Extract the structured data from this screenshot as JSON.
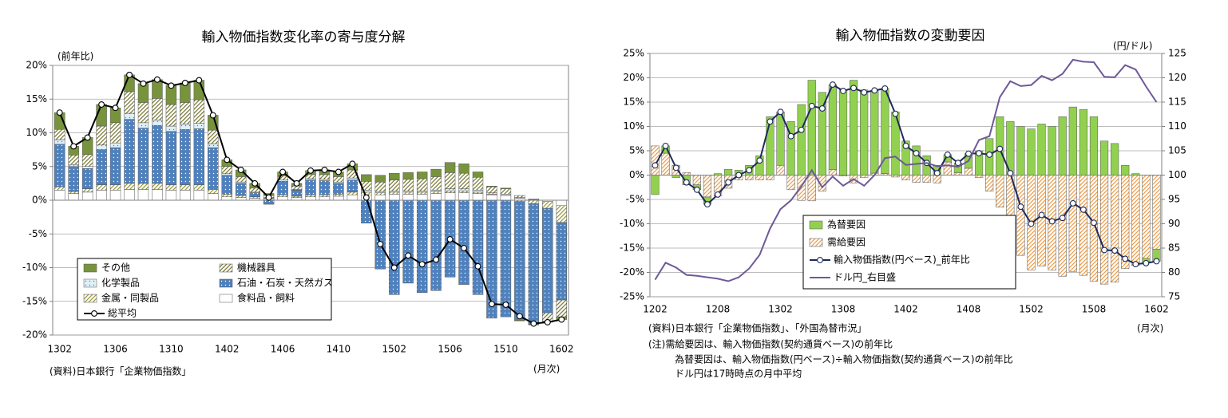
{
  "chart_data": [
    {
      "type": "bar",
      "stacked": true,
      "title": "輸入物価指数変化率の寄与度分解",
      "y_unit_label": "(前年比)",
      "x_unit_label": "(月次)",
      "source": "(資料)日本銀行「企業物価指数」",
      "categories": [
        "1302",
        null,
        null,
        null,
        "1306",
        null,
        null,
        null,
        "1310",
        null,
        null,
        null,
        "1402",
        null,
        null,
        null,
        "1406",
        null,
        null,
        null,
        "1410",
        null,
        null,
        null,
        "1502",
        null,
        null,
        null,
        "1506",
        null,
        null,
        null,
        "1510",
        null,
        null,
        null,
        "1602"
      ],
      "ylim": [
        -20,
        20
      ],
      "yticks": [
        {
          "value": -20,
          "label": "-20%"
        },
        {
          "value": -15,
          "label": "-15%"
        },
        {
          "value": -10,
          "label": "-10%"
        },
        {
          "value": -5,
          "label": "-5%"
        },
        {
          "value": 0,
          "label": "0%"
        },
        {
          "value": 5,
          "label": "5%"
        },
        {
          "value": 10,
          "label": "10%"
        },
        {
          "value": 15,
          "label": "15%"
        },
        {
          "value": 20,
          "label": "20%"
        }
      ],
      "grid": true,
      "legend": "lower left",
      "series": [
        {
          "name": "その他",
          "color": "#77933c",
          "values": [
            2.5,
            1.3,
            2.5,
            3.2,
            2.2,
            2.5,
            2.8,
            2.8,
            2.8,
            2.9,
            2.9,
            2.2,
            1.0,
            1.0,
            0.7,
            0.3,
            0.6,
            0.4,
            0.6,
            0.7,
            0.7,
            0.9,
            1.0,
            1.0,
            1.0,
            1.0,
            1.0,
            1.1,
            1.5,
            1.4,
            0.8,
            0.1,
            0.1,
            -0.1,
            -0.1,
            -0.2,
            -0.4
          ]
        },
        {
          "name": "機械器具",
          "color": "#7a7a3a",
          "pattern": "hatch",
          "values": [
            1.5,
            1.4,
            1.8,
            2.8,
            3.0,
            3.2,
            3.0,
            3.2,
            3.2,
            3.2,
            3.5,
            2.0,
            1.0,
            0.8,
            0.6,
            0.3,
            0.6,
            0.5,
            0.6,
            0.7,
            0.8,
            1.2,
            1.3,
            1.4,
            1.6,
            1.7,
            1.8,
            2.0,
            2.4,
            2.3,
            1.9,
            0.9,
            0.8,
            0.3,
            0.0,
            -1.2,
            -2.5
          ]
        },
        {
          "name": "化学製品",
          "color": "#dff0f7",
          "pattern": "dots",
          "values": [
            0.7,
            0.3,
            0.3,
            0.7,
            0.7,
            0.9,
            0.8,
            0.8,
            0.8,
            0.8,
            0.8,
            0.6,
            0.3,
            0.2,
            0.1,
            0.1,
            0.2,
            0.1,
            0.2,
            0.2,
            0.2,
            0.3,
            0.3,
            0.2,
            0.2,
            0.2,
            0.2,
            0.2,
            0.3,
            0.3,
            0.3,
            0.2,
            0.2,
            0.1,
            0.1,
            0.0,
            0.0
          ]
        },
        {
          "name": "石油・石炭・天然ガス",
          "color": "#4f81bd",
          "pattern": "dots",
          "values": [
            6.3,
            3.7,
            3.0,
            5.2,
            5.5,
            9.5,
            8.2,
            8.6,
            7.9,
            8.2,
            8.3,
            6.2,
            2.8,
            1.8,
            0.6,
            -0.6,
            2.0,
            0.9,
            2.2,
            2.1,
            1.6,
            1.8,
            -3.4,
            -10.2,
            -14.0,
            -12.3,
            -13.7,
            -13.4,
            -11.4,
            -12.5,
            -14.0,
            -17.5,
            -17.3,
            -17.6,
            -17.9,
            -15.5,
            -11.5
          ]
        },
        {
          "name": "金属・同製品",
          "color": "#9a9a40",
          "pattern": "hatch",
          "values": [
            0.5,
            0.3,
            0.5,
            0.8,
            0.8,
            0.9,
            0.9,
            0.9,
            0.8,
            0.8,
            0.8,
            0.6,
            0.4,
            0.3,
            0.2,
            0.1,
            0.3,
            0.2,
            0.3,
            0.3,
            0.3,
            0.4,
            0.4,
            0.3,
            0.3,
            0.3,
            0.3,
            0.3,
            0.3,
            0.3,
            0.2,
            0.1,
            0.0,
            -0.2,
            -0.5,
            -1.0,
            -2.5
          ]
        },
        {
          "name": "食料品・飼料",
          "color": "#ffffff",
          "values": [
            1.5,
            1.0,
            1.2,
            1.5,
            1.5,
            1.6,
            1.6,
            1.6,
            1.5,
            1.5,
            1.5,
            1.0,
            0.5,
            0.4,
            0.3,
            0.2,
            0.5,
            0.4,
            0.5,
            0.5,
            0.6,
            0.8,
            0.8,
            0.8,
            0.9,
            0.9,
            0.9,
            1.0,
            1.1,
            1.1,
            1.0,
            0.8,
            0.7,
            0.3,
            0.1,
            -0.2,
            -0.8
          ]
        },
        {
          "name": "総平均",
          "type": "line",
          "marker": true,
          "color": "#000000",
          "values": [
            13.0,
            8.0,
            9.3,
            14.2,
            13.7,
            18.6,
            17.3,
            17.9,
            17.0,
            17.4,
            17.8,
            12.6,
            6.0,
            4.5,
            2.5,
            0.4,
            4.2,
            2.5,
            4.4,
            4.5,
            4.2,
            5.4,
            0.4,
            -6.5,
            -10.0,
            -8.2,
            -9.5,
            -8.8,
            -5.8,
            -7.1,
            -9.8,
            -15.4,
            -15.5,
            -17.2,
            -18.3,
            -18.1,
            -17.7
          ]
        }
      ]
    },
    {
      "type": "bar",
      "stacked": true,
      "title": "輸入物価指数の変動要因",
      "y2_unit_label": "(円/ドル)",
      "x_unit_label": "(月次)",
      "source": "(資料)日本銀行「企業物価指数」、「外国為替市況」",
      "notes": [
        "(注)需給要因は、輸入物価指数(契約通貨ベース)の前年比",
        "為替要因は、輸入物価指数(円ベース)÷輸入物価指数(契約通貨ベース)の前年比",
        "ドル円は17時時点の月中平均"
      ],
      "categories": [
        "1202",
        null,
        null,
        null,
        null,
        null,
        "1208",
        null,
        null,
        null,
        null,
        null,
        "1302",
        null,
        null,
        null,
        null,
        null,
        "1308",
        null,
        null,
        null,
        null,
        null,
        "1402",
        null,
        null,
        null,
        null,
        null,
        "1408",
        null,
        null,
        null,
        null,
        null,
        "1502",
        null,
        null,
        null,
        null,
        null,
        "1508",
        null,
        null,
        null,
        null,
        null,
        "1602"
      ],
      "ylim": [
        -25,
        25
      ],
      "yticks": [
        {
          "value": -25,
          "label": "-25%"
        },
        {
          "value": -20,
          "label": "-20%"
        },
        {
          "value": -15,
          "label": "-15%"
        },
        {
          "value": -10,
          "label": "-10%"
        },
        {
          "value": -5,
          "label": "-5%"
        },
        {
          "value": 0,
          "label": "0%"
        },
        {
          "value": 5,
          "label": "5%"
        },
        {
          "value": 10,
          "label": "10%"
        },
        {
          "value": 15,
          "label": "15%"
        },
        {
          "value": 20,
          "label": "20%"
        },
        {
          "value": 25,
          "label": "25%"
        }
      ],
      "y2lim": [
        75,
        125
      ],
      "y2ticks": [
        75,
        80,
        85,
        90,
        95,
        100,
        105,
        110,
        115,
        120,
        125
      ],
      "grid": true,
      "legend": "lower left",
      "series": [
        {
          "name": "為替要因",
          "color": "#92d050",
          "values": [
            -4.0,
            1.5,
            -0.5,
            -2.0,
            -1.0,
            -1.5,
            0.3,
            1.2,
            1.0,
            2.0,
            4.0,
            12.0,
            11.0,
            11.0,
            14.5,
            19.5,
            17.0,
            17.5,
            17.5,
            19.5,
            17.5,
            17.0,
            17.5,
            13.0,
            7.0,
            6.0,
            4.0,
            2.0,
            1.5,
            2.0,
            3.0,
            5.0,
            7.5,
            12.0,
            11.0,
            10.0,
            9.5,
            10.5,
            10.0,
            12.0,
            14.0,
            13.5,
            12.0,
            7.0,
            6.5,
            2.0,
            0.3,
            -1.0,
            -2.5
          ]
        },
        {
          "name": "需給要因",
          "color": "#e8a050",
          "pattern": "hatch",
          "values": [
            6.0,
            4.5,
            2.0,
            0.5,
            -2.0,
            -4.5,
            -4.3,
            -2.7,
            -1.0,
            -1.0,
            -1.0,
            -1.0,
            2.0,
            -3.0,
            -5.2,
            -5.3,
            -3.3,
            1.1,
            -0.2,
            -1.6,
            -0.5,
            0.4,
            0.3,
            -0.4,
            -1.0,
            -1.5,
            -1.5,
            -1.6,
            2.7,
            0.5,
            1.4,
            -0.5,
            -3.3,
            -6.6,
            -10.6,
            -16.5,
            -19.5,
            -18.7,
            -19.5,
            -20.8,
            -19.8,
            -20.6,
            -21.8,
            -22.4,
            -22.0,
            -19.2,
            -18.6,
            -17.1,
            -15.2
          ]
        },
        {
          "name": "輸入物価指数(円ベース)_前年比",
          "type": "line",
          "marker": true,
          "color": "#1f2a5a",
          "values": [
            2.0,
            6.0,
            1.5,
            -1.5,
            -3.0,
            -6.0,
            -4.0,
            -1.5,
            0.0,
            1.0,
            3.0,
            11.0,
            13.0,
            8.0,
            9.3,
            14.2,
            13.7,
            18.6,
            17.3,
            17.9,
            17.0,
            17.4,
            17.8,
            12.6,
            6.0,
            4.5,
            2.5,
            0.4,
            4.2,
            2.5,
            4.4,
            4.5,
            4.2,
            5.4,
            0.4,
            -6.5,
            -10.0,
            -8.2,
            -9.5,
            -8.8,
            -5.8,
            -7.1,
            -9.8,
            -15.4,
            -15.5,
            -17.2,
            -18.3,
            -18.1,
            -17.7
          ]
        },
        {
          "name": "ドル円_右目盛",
          "type": "line",
          "axis": "y2",
          "color": "#6e5a96",
          "values": [
            78.5,
            82.0,
            81.0,
            79.5,
            79.3,
            79.0,
            78.7,
            78.2,
            79.0,
            80.8,
            83.6,
            89.0,
            93.0,
            94.8,
            97.7,
            101.0,
            97.5,
            99.7,
            97.8,
            99.2,
            97.8,
            100.0,
            103.5,
            103.8,
            102.1,
            102.3,
            102.5,
            101.8,
            102.0,
            101.7,
            102.9,
            107.2,
            108.0,
            116.0,
            119.3,
            118.3,
            118.5,
            120.4,
            119.5,
            120.8,
            123.7,
            123.3,
            123.2,
            120.2,
            120.1,
            122.6,
            121.7,
            118.2,
            115.0
          ]
        }
      ]
    }
  ]
}
